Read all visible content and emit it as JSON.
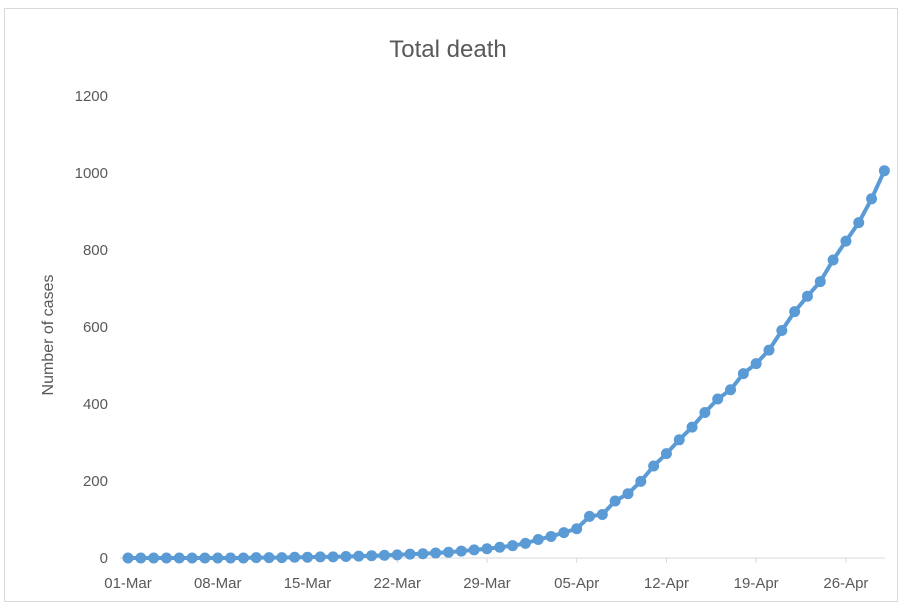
{
  "chart_data": {
    "type": "line",
    "title": "Total death",
    "xlabel": "",
    "ylabel": "Number of cases",
    "ylim": [
      0,
      1200
    ],
    "yticks": [
      0,
      200,
      400,
      600,
      800,
      1000,
      1200
    ],
    "xtick_labels": [
      "01-Mar",
      "08-Mar",
      "15-Mar",
      "22-Mar",
      "29-Mar",
      "05-Apr",
      "12-Apr",
      "19-Apr",
      "26-Apr"
    ],
    "grid": false,
    "legend": "none",
    "series_color": "#5b9bd5",
    "x": [
      "01-Mar",
      "02-Mar",
      "03-Mar",
      "04-Mar",
      "05-Mar",
      "06-Mar",
      "07-Mar",
      "08-Mar",
      "09-Mar",
      "10-Mar",
      "11-Mar",
      "12-Mar",
      "13-Mar",
      "14-Mar",
      "15-Mar",
      "16-Mar",
      "17-Mar",
      "18-Mar",
      "19-Mar",
      "20-Mar",
      "21-Mar",
      "22-Mar",
      "23-Mar",
      "24-Mar",
      "25-Mar",
      "26-Mar",
      "27-Mar",
      "28-Mar",
      "29-Mar",
      "30-Mar",
      "31-Mar",
      "01-Apr",
      "02-Apr",
      "03-Apr",
      "04-Apr",
      "05-Apr",
      "06-Apr",
      "07-Apr",
      "08-Apr",
      "09-Apr",
      "10-Apr",
      "11-Apr",
      "12-Apr",
      "13-Apr",
      "14-Apr",
      "15-Apr",
      "16-Apr",
      "17-Apr",
      "18-Apr",
      "19-Apr",
      "20-Apr",
      "21-Apr",
      "22-Apr",
      "23-Apr",
      "24-Apr",
      "25-Apr",
      "26-Apr",
      "27-Apr",
      "28-Apr",
      "29-Apr"
    ],
    "series": [
      {
        "values": [
          0,
          0,
          0,
          0,
          0,
          0,
          0,
          0,
          0,
          0,
          1,
          1,
          1,
          2,
          2,
          3,
          3,
          4,
          5,
          6,
          7,
          8,
          10,
          11,
          13,
          15,
          18,
          21,
          24,
          28,
          32,
          38,
          48,
          56,
          66,
          76,
          108,
          113,
          148,
          167,
          199,
          239,
          271,
          307,
          340,
          378,
          413,
          437,
          479,
          505,
          540,
          591,
          640,
          680,
          718,
          774,
          823,
          871,
          933,
          1006
        ]
      }
    ]
  }
}
